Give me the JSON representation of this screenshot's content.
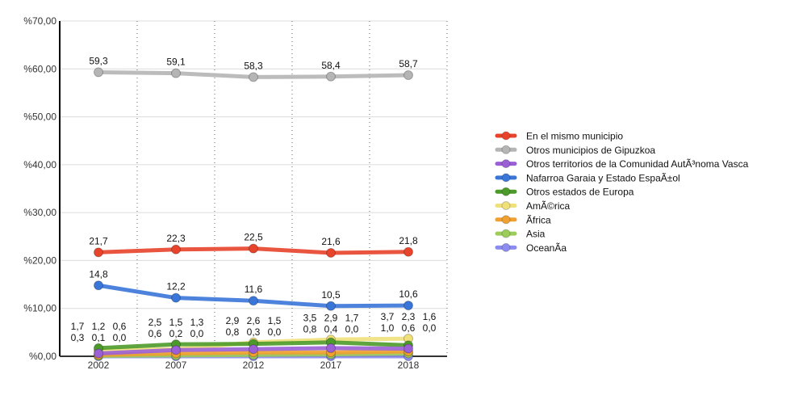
{
  "chart_data": {
    "type": "line",
    "x": [
      "2002",
      "2007",
      "2012",
      "2017",
      "2018"
    ],
    "ylim": [
      0,
      70
    ],
    "yticks": [
      "%0,00",
      "%10,00",
      "%20,00",
      "%30,00",
      "%40,00",
      "%50,00",
      "%60,00",
      "%70,00"
    ],
    "grid": true,
    "legend_placement": "right",
    "series": [
      {
        "name": "En el mismo municipio",
        "color": "#e8432b",
        "values": [
          21.7,
          22.3,
          22.5,
          21.6,
          21.8
        ],
        "labels": [
          "21,7",
          "22,3",
          "22,5",
          "21,6",
          "21,8"
        ]
      },
      {
        "name": "Otros municipios de Gipuzkoa",
        "color": "#b5b5b5",
        "values": [
          59.3,
          59.1,
          58.3,
          58.4,
          58.7
        ],
        "labels": [
          "59,3",
          "59,1",
          "58,3",
          "58,4",
          "58,7"
        ]
      },
      {
        "name": "Otros territorios de la Comunidad AutÃ³noma Vasca",
        "color": "#9b5fd6",
        "values": [
          0.6,
          1.3,
          1.5,
          1.7,
          1.6
        ],
        "labels": [
          "0,6",
          "1,3",
          "1,5",
          "1,7",
          "1,6"
        ]
      },
      {
        "name": "Nafarroa Garaia y Estado EspaÃ±ol",
        "color": "#3a75d8",
        "values": [
          14.8,
          12.2,
          11.6,
          10.5,
          10.6
        ],
        "labels": [
          "14,8",
          "12,2",
          "11,6",
          "10,5",
          "10,6"
        ]
      },
      {
        "name": "Otros estados de Europa",
        "color": "#4c9a2a",
        "values": [
          1.7,
          2.5,
          2.6,
          2.9,
          2.3
        ],
        "labels": [
          "1,7",
          "2,5",
          "2,6",
          "2,9",
          "2,3"
        ]
      },
      {
        "name": "AmÃ©rica",
        "color": "#efe07a",
        "values": [
          1.2,
          1.5,
          2.9,
          3.5,
          3.7
        ],
        "labels": [
          "1,2",
          "1,5",
          "2,9",
          "3,5",
          "3,7"
        ]
      },
      {
        "name": "Ãfrica",
        "color": "#f0a030",
        "values": [
          0.3,
          0.6,
          0.8,
          0.8,
          1.0
        ],
        "labels": [
          "0,3",
          "0,6",
          "0,8",
          "0,8",
          "1,0"
        ]
      },
      {
        "name": "Asia",
        "color": "#9ccc5a",
        "values": [
          0.1,
          0.2,
          0.3,
          0.4,
          0.6
        ],
        "labels": [
          "0,1",
          "0,2",
          "0,3",
          "0,4",
          "0,6"
        ]
      },
      {
        "name": "OceanÃ­a",
        "color": "#8c8cf0",
        "values": [
          0.0,
          0.0,
          0.0,
          0.0,
          0.0
        ],
        "labels": [
          "0,0",
          "0,0",
          "0,0",
          "0,0",
          "0,0"
        ]
      }
    ]
  }
}
